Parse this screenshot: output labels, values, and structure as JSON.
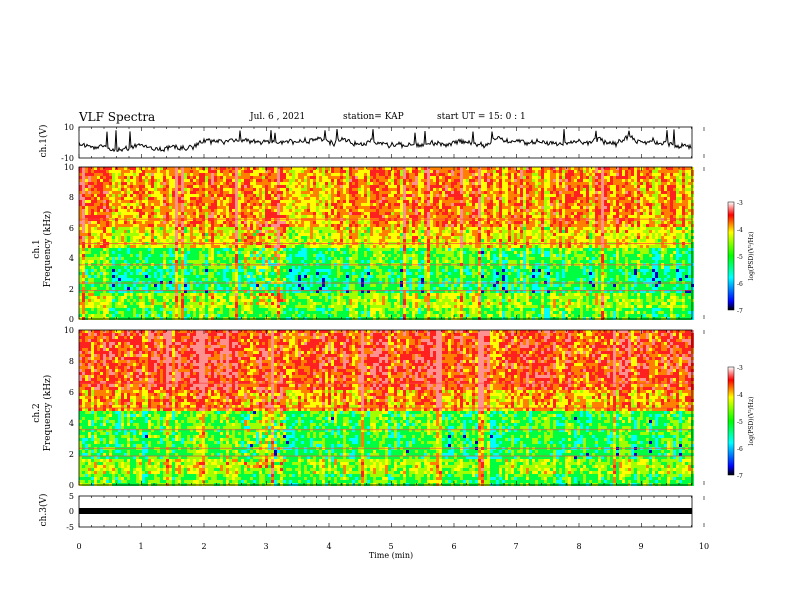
{
  "header": {
    "title": "VLF Spectra",
    "date": "Jul. 6 , 2021",
    "station": "station= KAP",
    "start": "start UT = 15: 0 : 1"
  },
  "chart_data": [
    {
      "type": "line",
      "panel": "ch1-waveform",
      "ylabel": "ch.1(V)",
      "ylim": [
        -10,
        10
      ],
      "ytick_labels": [
        "10",
        "-10"
      ],
      "x_range_min": [
        0,
        9.8
      ]
    },
    {
      "type": "heatmap",
      "panel": "ch1-spectrogram",
      "ylabel": "ch.1\nFrequency (kHz)",
      "ylim": [
        0,
        10
      ],
      "ytick_labels": [
        "10",
        "8",
        "6",
        "4",
        "2",
        "0"
      ],
      "colorbar": {
        "label": "log(PSD)(V²/Hz)",
        "range": [
          -7,
          -3
        ],
        "tick_labels": [
          "-3",
          "-4",
          "-5",
          "-6",
          "-7"
        ]
      }
    },
    {
      "type": "heatmap",
      "panel": "ch2-spectrogram",
      "ylabel": "ch.2\nFrequency (kHz)",
      "ylim": [
        0,
        10
      ],
      "ytick_labels": [
        "10",
        "8",
        "6",
        "4",
        "2",
        "0"
      ],
      "colorbar": {
        "label": "log(PSD)(V²/Hz)",
        "range": [
          -7,
          -3
        ],
        "tick_labels": [
          "-3",
          "-4",
          "-5",
          "-6",
          "-7"
        ]
      }
    },
    {
      "type": "line",
      "panel": "ch3-waveform",
      "ylabel": "ch.3(V)",
      "ylim": [
        -5,
        5
      ],
      "ytick_labels": [
        "5",
        "0",
        "-5"
      ],
      "series_level": 0
    }
  ],
  "xaxis": {
    "label": "Time (min)",
    "range": [
      0,
      10
    ],
    "tick_labels": [
      "0",
      "1",
      "2",
      "3",
      "4",
      "5",
      "6",
      "7",
      "8",
      "9",
      "10"
    ]
  }
}
